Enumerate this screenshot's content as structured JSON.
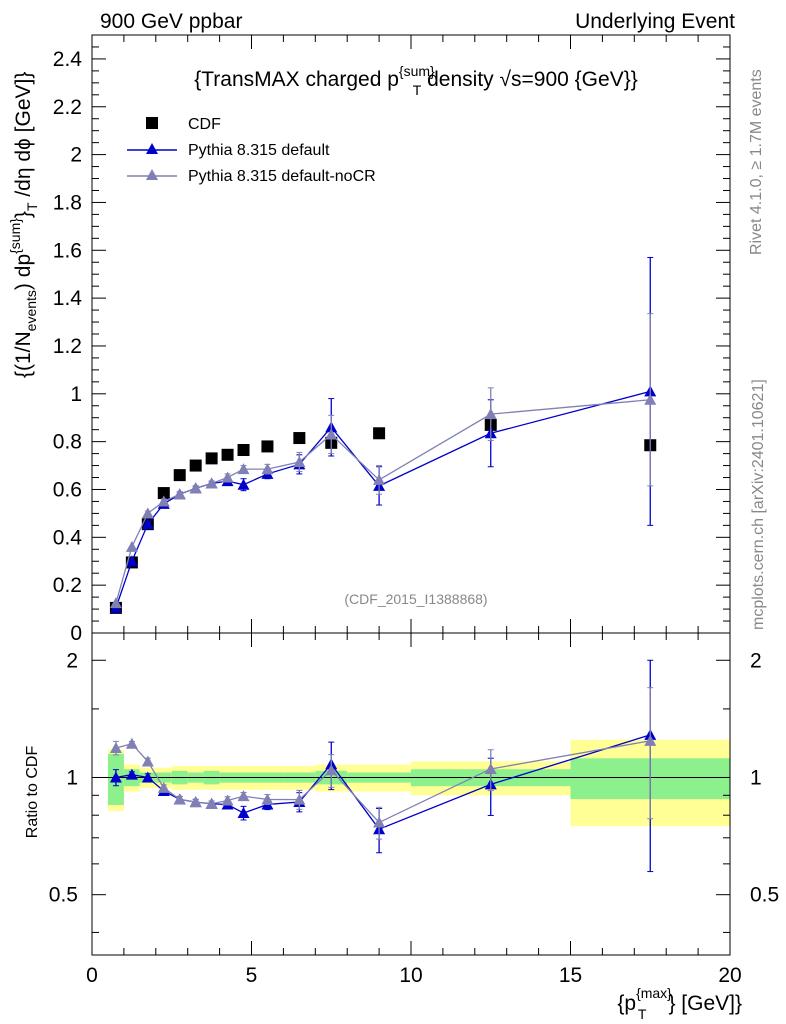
{
  "header": {
    "left": "900 GeV ppbar",
    "right": "Underlying Event"
  },
  "side": {
    "rivet": "Rivet 4.1.0, ≥ 1.7M events",
    "mcplots": "mcplots.cern.ch [arXiv:2401.10621]"
  },
  "watermark": "(CDF_2015_I1388868)",
  "title": {
    "main": "{TransMAX charged p",
    "sup": "{sum}",
    "sub": "T",
    "rest": " density √s=900 {GeV}}"
  },
  "ylabel": {
    "p1": "{(1/N",
    "p1sub": "events",
    "p2": ") dp",
    "p2sup": "{sum}",
    "p3": "}",
    "p3sub": "T",
    "p4": " /dη  dϕ [GeV]}"
  },
  "xlabel": {
    "p1": "{p",
    "sup": "{max}",
    "sub": "T",
    "p2": "} [GeV]}"
  },
  "ratio_ylabel": "Ratio to CDF",
  "legend": [
    {
      "label": "CDF",
      "color": "#000000",
      "marker": "square"
    },
    {
      "label": "Pythia 8.315 default",
      "color": "#0000cc",
      "marker": "triangle"
    },
    {
      "label": "Pythia 8.315 default-noCR",
      "color": "#8080b4",
      "marker": "triangle"
    }
  ],
  "chart_data": {
    "type": "scatter",
    "title": "{TransMAX charged p^{sum}_T density √s=900 {GeV}}",
    "xlabel": "{p_T^{max}} [GeV]}",
    "ylabel": "{(1/N_events) dp^{sum}_T /dη dϕ [GeV]}",
    "xlim": [
      0,
      20
    ],
    "ylim": [
      0,
      2.5
    ],
    "ratio_ylim": [
      0.35,
      2.35
    ],
    "x_ticks": [
      "0",
      "5",
      "10",
      "15",
      "20"
    ],
    "y_ticks": [
      "0",
      "0.2",
      "0.4",
      "0.6",
      "0.8",
      "1",
      "1.2",
      "1.4",
      "1.6",
      "1.8",
      "2",
      "2.2",
      "2.4"
    ],
    "ratio_ticks": [
      "0.5",
      "1",
      "2"
    ],
    "series": [
      {
        "name": "CDF",
        "x": [
          0.75,
          1.25,
          1.75,
          2.25,
          2.75,
          3.25,
          3.75,
          4.25,
          4.75,
          5.5,
          6.5,
          7.5,
          9.0,
          12.5,
          17.5
        ],
        "y": [
          0.105,
          0.295,
          0.455,
          0.585,
          0.66,
          0.7,
          0.73,
          0.745,
          0.765,
          0.78,
          0.815,
          0.795,
          0.835,
          0.87,
          0.785
        ]
      },
      {
        "name": "Pythia 8.315 default",
        "x": [
          0.75,
          1.25,
          1.75,
          2.25,
          2.75,
          3.25,
          3.75,
          4.25,
          4.75,
          5.5,
          6.5,
          7.5,
          9.0,
          12.5,
          17.5
        ],
        "y": [
          0.105,
          0.3,
          0.455,
          0.54,
          0.58,
          0.605,
          0.625,
          0.635,
          0.62,
          0.665,
          0.705,
          0.86,
          0.615,
          0.835,
          1.01
        ],
        "yerr": [
          0.005,
          0.005,
          0.01,
          0.01,
          0.01,
          0.01,
          0.01,
          0.015,
          0.025,
          0.02,
          0.04,
          0.12,
          0.08,
          0.14,
          0.56
        ]
      },
      {
        "name": "Pythia 8.315 default-noCR",
        "x": [
          0.75,
          1.25,
          1.75,
          2.25,
          2.75,
          3.25,
          3.75,
          4.25,
          4.75,
          5.5,
          6.5,
          7.5,
          9.0,
          12.5,
          17.5
        ],
        "y": [
          0.125,
          0.36,
          0.5,
          0.55,
          0.58,
          0.605,
          0.625,
          0.65,
          0.685,
          0.685,
          0.715,
          0.83,
          0.64,
          0.915,
          0.975
        ],
        "yerr": [
          0.005,
          0.005,
          0.01,
          0.01,
          0.01,
          0.01,
          0.01,
          0.015,
          0.015,
          0.02,
          0.04,
          0.08,
          0.06,
          0.11,
          0.36
        ]
      }
    ],
    "cdf_band_edges": [
      0.5,
      1.0,
      1.5,
      2.0,
      2.5,
      3.0,
      3.5,
      4.0,
      4.5,
      5.0,
      6.0,
      7.0,
      8.0,
      10.0,
      15.0,
      20.0
    ],
    "cdf_band_inner": [
      0.15,
      0.05,
      0.03,
      0.03,
      0.04,
      0.03,
      0.04,
      0.03,
      0.03,
      0.03,
      0.03,
      0.04,
      0.03,
      0.05,
      0.12
    ],
    "cdf_band_outer": [
      0.18,
      0.08,
      0.06,
      0.06,
      0.07,
      0.07,
      0.07,
      0.07,
      0.07,
      0.07,
      0.07,
      0.08,
      0.08,
      0.1,
      0.25
    ],
    "band_colors": {
      "inner": "#8cf08c",
      "outer": "#ffff96"
    },
    "ratio_reference": 1
  }
}
